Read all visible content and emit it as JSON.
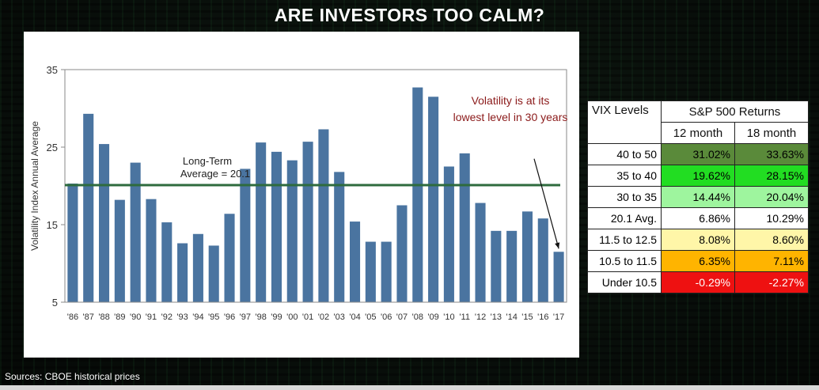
{
  "page_title": "ARE INVESTORS TOO CALM?",
  "source_text": "Sources: CBOE historical prices",
  "chart_data": {
    "type": "bar",
    "categories": [
      "'86",
      "'87",
      "'88",
      "'89",
      "'90",
      "'91",
      "'92",
      "'93",
      "'94",
      "'95",
      "'96",
      "'97",
      "'98",
      "'99",
      "'00",
      "'01",
      "'02",
      "'03",
      "'04",
      "'05",
      "'06",
      "'07",
      "'08",
      "'09",
      "'10",
      "'11",
      "'12",
      "'13",
      "'14",
      "'15",
      "'16",
      "'17"
    ],
    "values": [
      20.3,
      29.3,
      25.4,
      18.2,
      23.0,
      18.3,
      15.3,
      12.6,
      13.8,
      12.3,
      16.4,
      22.2,
      25.6,
      24.4,
      23.3,
      25.7,
      27.3,
      21.8,
      15.4,
      12.8,
      12.8,
      17.5,
      32.7,
      31.5,
      22.5,
      24.2,
      17.8,
      14.2,
      14.2,
      16.7,
      15.8,
      11.5
    ],
    "ylabel": "Volatility Index Annual Average",
    "xlabel": "",
    "ylim": [
      5,
      35
    ],
    "yticks": [
      5,
      15,
      25,
      35
    ],
    "bar_color": "#4a74a0",
    "grid": false,
    "reference_line": {
      "value": 20.1,
      "color": "#2e6b3e",
      "label_line1": "Long-Term",
      "label_line2": "Average = 20.1"
    },
    "annotation": {
      "line1": "Volatility is at its",
      "line2": "lowest level in 30 years",
      "color": "#8b1a1a",
      "points_to": "'17"
    }
  },
  "table": {
    "header_level": "VIX Levels",
    "header_group": "S&P 500 Returns",
    "header_12": "12 month",
    "header_18": "18 month",
    "rows": [
      {
        "level": "40 to 50",
        "m12": "31.02%",
        "m18": "33.63%",
        "bg12": "#5a8a3a",
        "bg18": "#5a8a3a",
        "bold": true
      },
      {
        "level": "35 to 40",
        "m12": "19.62%",
        "m18": "28.15%",
        "bg12": "#22dd22",
        "bg18": "#22dd22",
        "bold": false
      },
      {
        "level": "30 to 35",
        "m12": "14.44%",
        "m18": "20.04%",
        "bg12": "#9ef59e",
        "bg18": "#9ef59e",
        "bold": false
      },
      {
        "level": "20.1 Avg.",
        "m12": "6.86%",
        "m18": "10.29%",
        "bg12": "#ffffff",
        "bg18": "#ffffff",
        "bold": false
      },
      {
        "level": "11.5 to 12.5",
        "m12": "8.08%",
        "m18": "8.60%",
        "bg12": "#fff6a8",
        "bg18": "#fff6a8",
        "bold": false
      },
      {
        "level": "10.5 to 11.5",
        "m12": "6.35%",
        "m18": "7.11%",
        "bg12": "#ffb400",
        "bg18": "#ffb400",
        "bold": true
      },
      {
        "level": "Under 10.5",
        "m12": "-0.29%",
        "m18": "-2.27%",
        "bg12": "#ee1111",
        "bg18": "#ee1111",
        "bold": true,
        "fg": "#ffffff"
      }
    ]
  }
}
